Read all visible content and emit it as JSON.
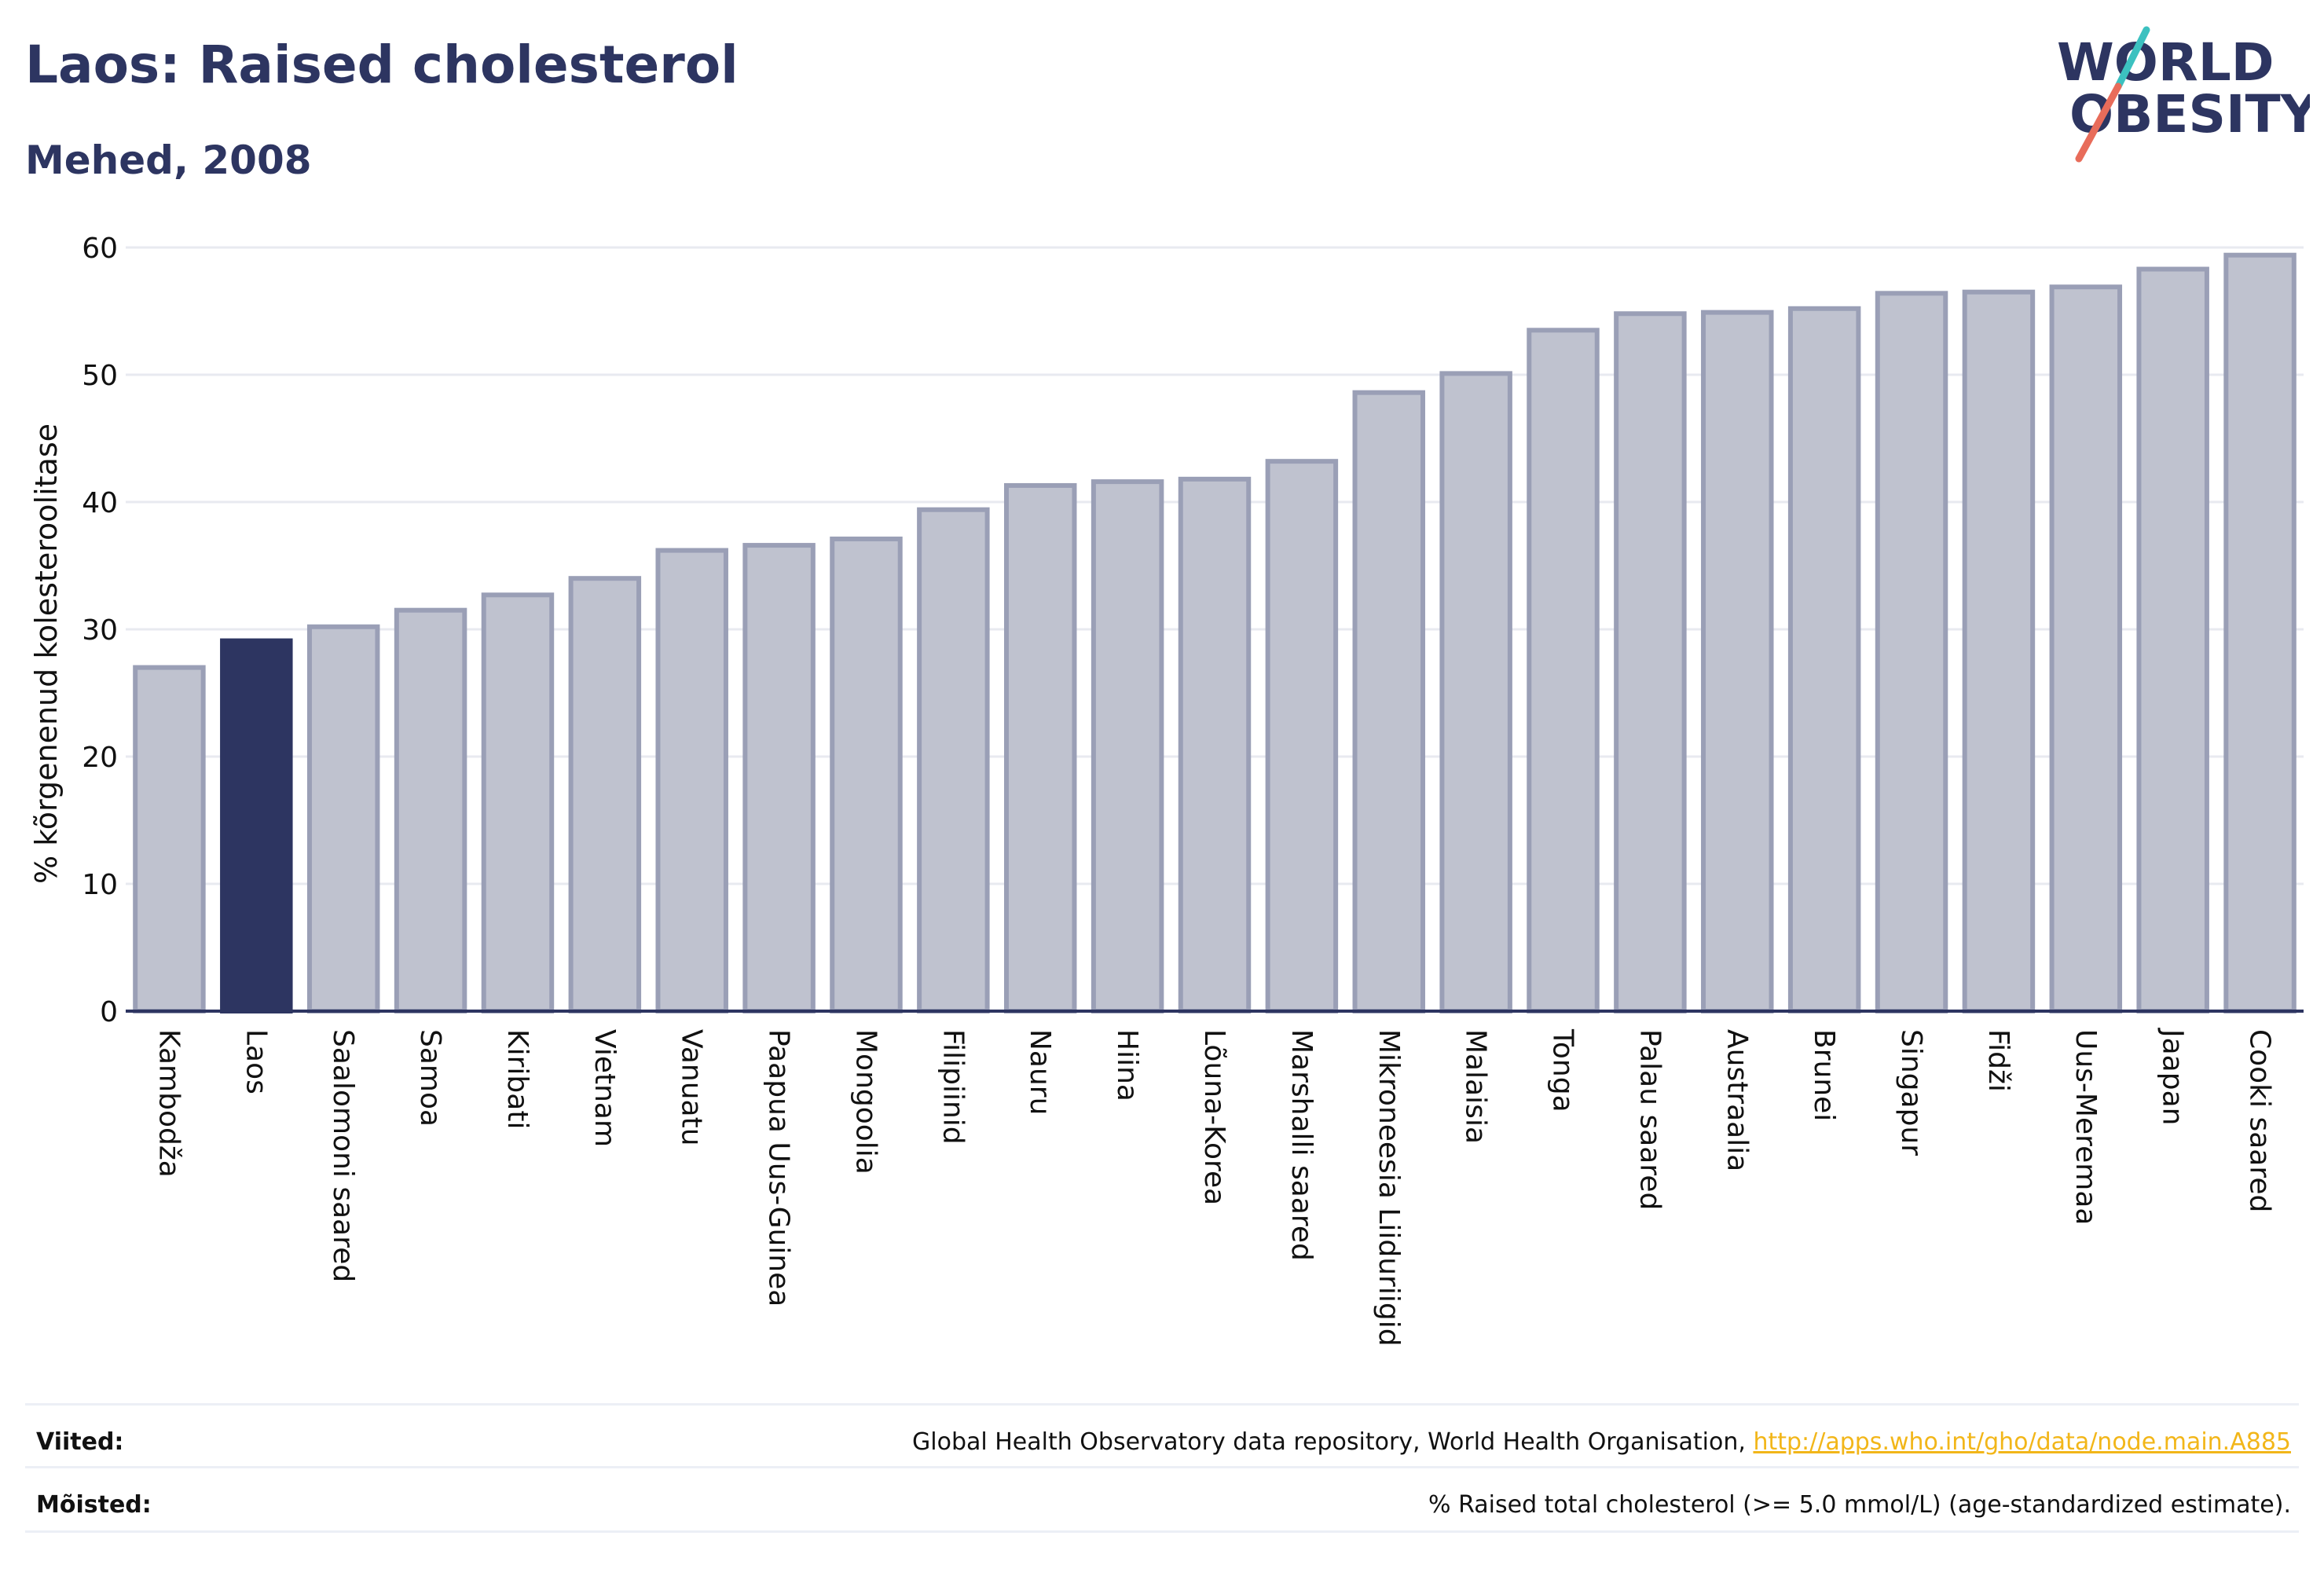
{
  "header": {
    "title": "Laos: Raised cholesterol",
    "subtitle": "Mehed, 2008"
  },
  "logo": {
    "line1": "WORLD",
    "line2": "OBESITY",
    "slash_colors": [
      "#3cc1c0",
      "#e86c5a"
    ],
    "text_color": "#2d3561"
  },
  "colors": {
    "highlight_bar": "#2d3561",
    "bar_fill": "#bfc2cf",
    "bar_stroke": "#9a9fb6",
    "grid": "#e8eaf0",
    "axis": "#2d3561"
  },
  "chart_data": {
    "type": "bar",
    "title": "",
    "xlabel": "",
    "ylabel": "% kõrgenenud kolesteroolitase",
    "ylim": [
      0,
      60
    ],
    "yticks": [
      0,
      10,
      20,
      30,
      40,
      50,
      60
    ],
    "grid": true,
    "highlight": "Laos",
    "categories": [
      "Kambodža",
      "Laos",
      "Saalomoni saared",
      "Samoa",
      "Kiribati",
      "Vietnam",
      "Vanuatu",
      "Paapua Uus-Guinea",
      "Mongoolia",
      "Filipiinid",
      "Nauru",
      "Hiina",
      "Lõuna-Korea",
      "Marshalli saared",
      "Mikroneesia Liiduriigid",
      "Malaisia",
      "Tonga",
      "Palau saared",
      "Austraalia",
      "Brunei",
      "Singapur",
      "Fidži",
      "Uus-Meremaa",
      "Jaapan",
      "Cooki saared"
    ],
    "values": [
      27.0,
      29.1,
      30.2,
      31.5,
      32.7,
      34.0,
      36.2,
      36.6,
      37.1,
      39.4,
      41.3,
      41.6,
      41.8,
      43.2,
      48.6,
      50.1,
      53.5,
      54.8,
      54.9,
      55.2,
      56.4,
      56.5,
      56.9,
      58.3,
      59.4
    ]
  },
  "footer": {
    "sources_label": "Viited:",
    "sources_text": "Global Health Observatory data repository, World Health Organisation, ",
    "sources_link": "http://apps.who.int/gho/data/node.main.A885",
    "definitions_label": "Mõisted:",
    "definitions_text": "% Raised total cholesterol (>= 5.0 mmol/L) (age-standardized estimate)."
  }
}
